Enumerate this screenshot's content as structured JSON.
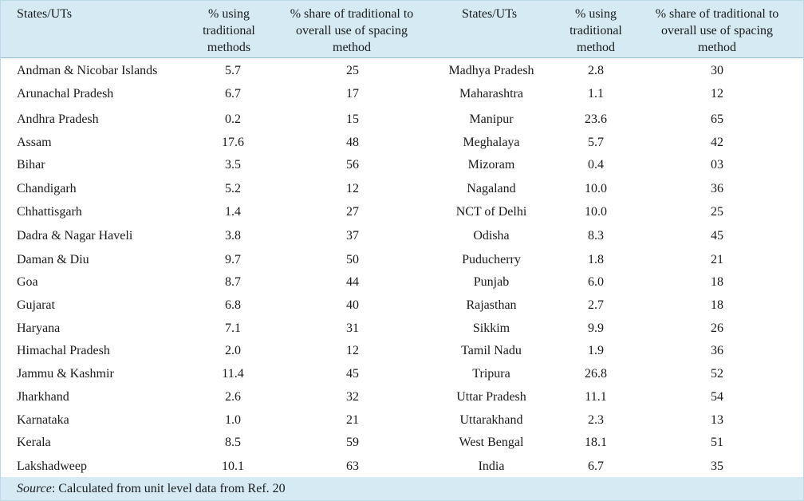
{
  "headers": {
    "state1": "States/UTs",
    "pct1": "% using\ntraditional\nmethods",
    "share1": "% share of traditional to\noverall use of spacing\nmethod",
    "state2": "States/UTs",
    "pct2": "% using\ntraditional\nmethod",
    "share2": "% share of traditional to\noverall use of spacing\nmethod"
  },
  "rows": [
    [
      "Andman & Nicobar Islands",
      "5.7",
      "25",
      "Madhya Pradesh",
      "2.8",
      "30"
    ],
    [
      "Arunachal Pradesh",
      "6.7",
      "17",
      "Maharashtra",
      "1.1",
      "12"
    ],
    [
      "Andhra Pradesh",
      "0.2",
      "15",
      "Manipur",
      "23.6",
      "65"
    ],
    [
      "Assam",
      "17.6",
      "48",
      "Meghalaya",
      "5.7",
      "42"
    ],
    [
      "Bihar",
      "3.5",
      "56",
      "Mizoram",
      "0.4",
      "03"
    ],
    [
      "Chandigarh",
      "5.2",
      "12",
      "Nagaland",
      "10.0",
      "36"
    ],
    [
      "Chhattisgarh",
      "1.4",
      "27",
      "NCT of Delhi",
      "10.0",
      "25"
    ],
    [
      "Dadra & Nagar Haveli",
      "3.8",
      "37",
      "Odisha",
      "8.3",
      "45"
    ],
    [
      "Daman & Diu",
      "9.7",
      "50",
      "Puducherry",
      "1.8",
      "21"
    ],
    [
      "Goa",
      "8.7",
      "44",
      "Punjab",
      "6.0",
      "18"
    ],
    [
      "Gujarat",
      "6.8",
      "40",
      "Rajasthan",
      "2.7",
      "18"
    ],
    [
      "Haryana",
      "7.1",
      "31",
      "Sikkim",
      "9.9",
      "26"
    ],
    [
      "Himachal Pradesh",
      "2.0",
      "12",
      "Tamil Nadu",
      "1.9",
      "36"
    ],
    [
      "Jammu & Kashmir",
      "11.4",
      "45",
      "Tripura",
      "26.8",
      "52"
    ],
    [
      "Jharkhand",
      "2.6",
      "32",
      "Uttar Pradesh",
      "11.1",
      "54"
    ],
    [
      "Karnataka",
      "1.0",
      "21",
      "Uttarakhand",
      "2.3",
      "13"
    ],
    [
      "Kerala",
      "8.5",
      "59",
      "West Bengal",
      "18.1",
      "51"
    ],
    [
      "Lakshadweep",
      "10.1",
      "63",
      "India",
      "6.7",
      "35"
    ]
  ],
  "footer": {
    "source_label": "Source",
    "source_text": ": Calculated from unit level data from Ref. 20"
  },
  "colors": {
    "header_bg": "#d5eaf3",
    "rule": "#8fbcd1"
  }
}
